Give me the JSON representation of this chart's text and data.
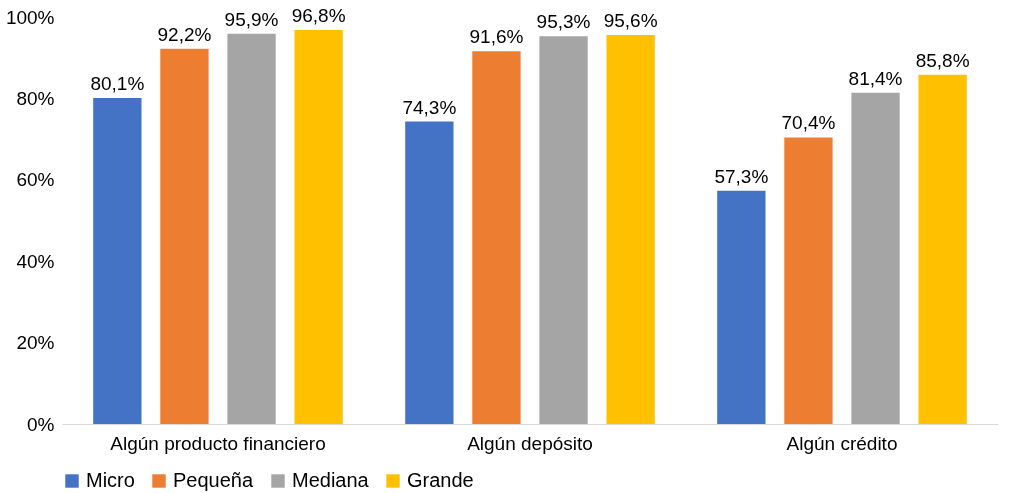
{
  "chart_data": {
    "type": "bar",
    "categories": [
      "Algún producto financiero",
      "Algún depósito",
      "Algún crédito"
    ],
    "series": [
      {
        "name": "Micro",
        "color": "#4472c4",
        "values": [
          80.1,
          74.3,
          57.3
        ],
        "value_labels": [
          "80,1%",
          "74,3%",
          "57,3%"
        ]
      },
      {
        "name": "Pequeña",
        "color": "#ed7d31",
        "values": [
          92.2,
          91.6,
          70.4
        ],
        "value_labels": [
          "92,2%",
          "91,6%",
          "70,4%"
        ]
      },
      {
        "name": "Mediana",
        "color": "#a5a5a5",
        "values": [
          95.9,
          95.3,
          81.4
        ],
        "value_labels": [
          "95,9%",
          "95,3%",
          "81,4%"
        ]
      },
      {
        "name": "Grande",
        "color": "#ffc000",
        "values": [
          96.8,
          95.6,
          85.8
        ],
        "value_labels": [
          "96,8%",
          "95,6%",
          "85,8%"
        ]
      }
    ],
    "ylim": [
      0,
      100
    ],
    "yticks": [
      {
        "value": 0,
        "label": "0%"
      },
      {
        "value": 20,
        "label": "20%"
      },
      {
        "value": 40,
        "label": "40%"
      },
      {
        "value": 60,
        "label": "60%"
      },
      {
        "value": 80,
        "label": "80%"
      },
      {
        "value": 100,
        "label": "100%"
      }
    ],
    "legend": "bottom"
  }
}
